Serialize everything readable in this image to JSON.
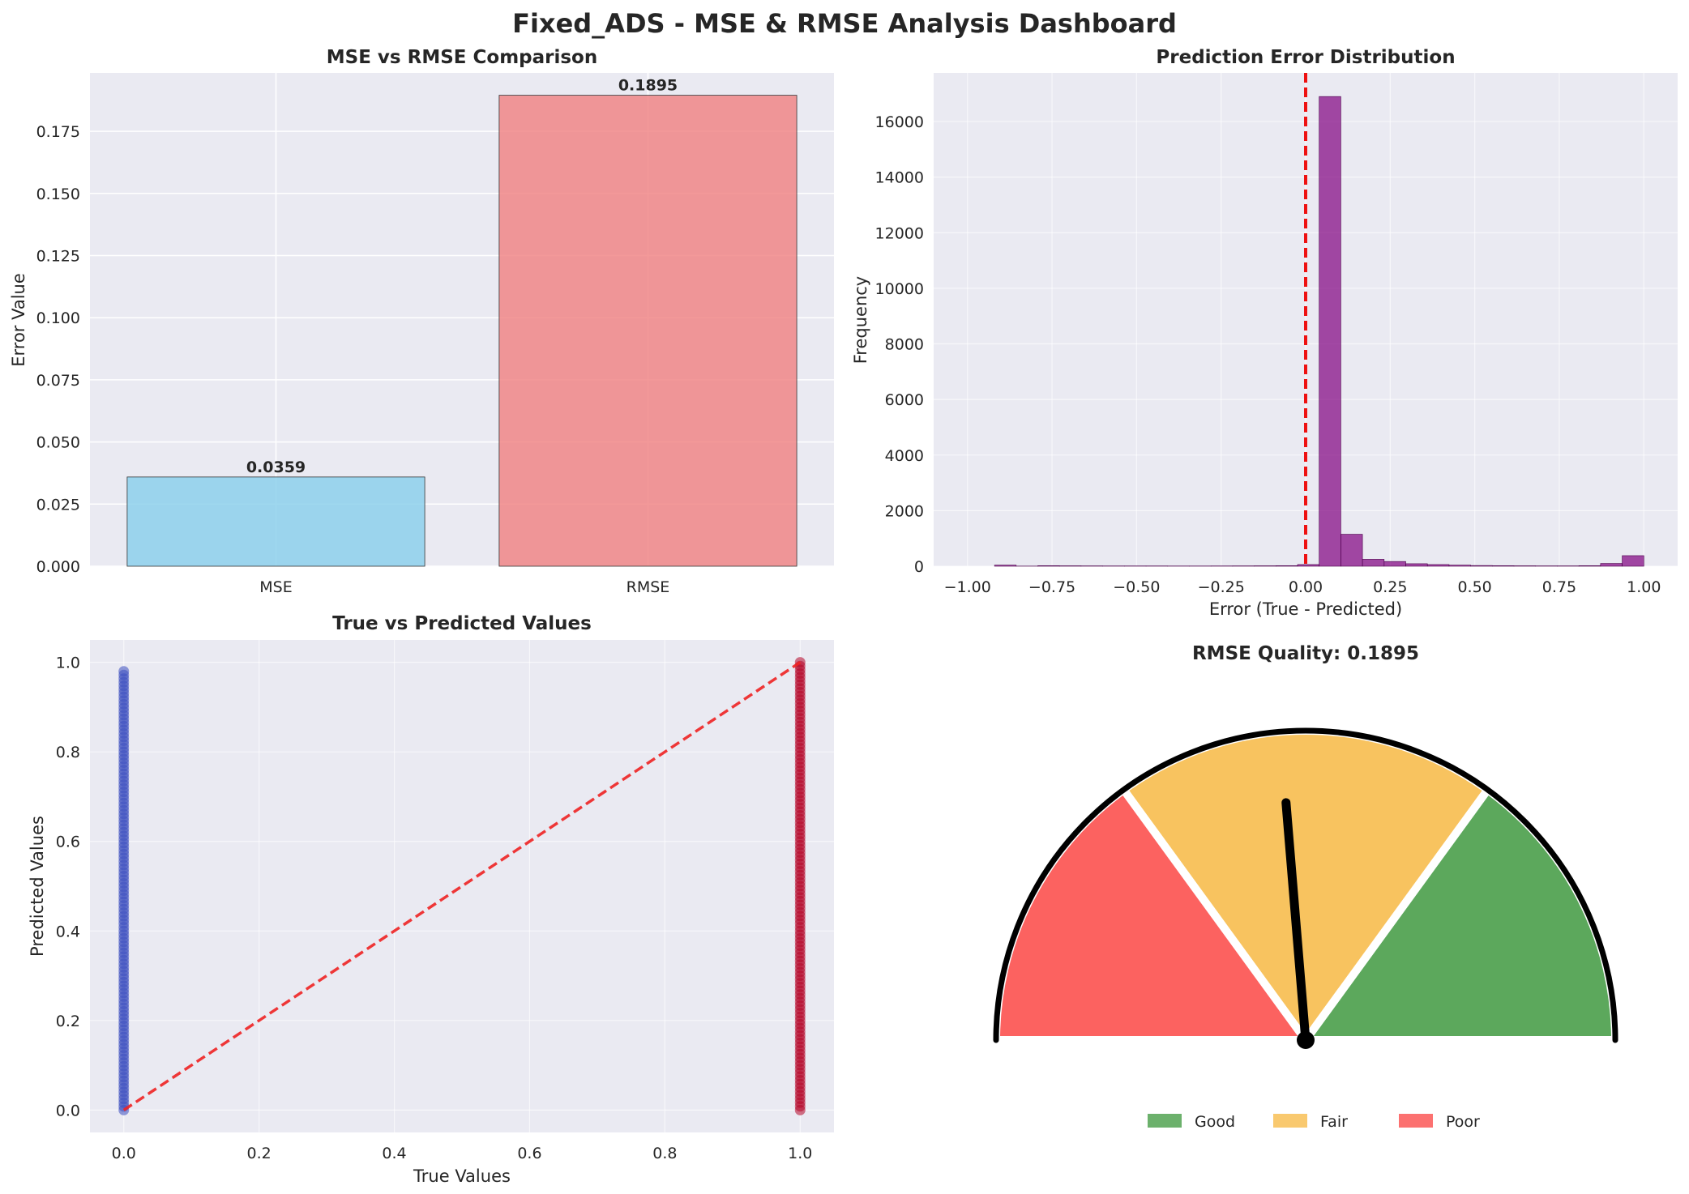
{
  "title": "Fixed_ADS - MSE & RMSE Analysis Dashboard",
  "chart_data": [
    {
      "type": "bar",
      "title": "MSE vs RMSE Comparison",
      "xlabel": "",
      "ylabel": "Error Value",
      "categories": [
        "MSE",
        "RMSE"
      ],
      "values": [
        0.0359,
        0.1895
      ],
      "value_labels": [
        "0.0359",
        "0.1895"
      ],
      "colors": [
        "#87ceeb",
        "#f08080"
      ],
      "ylim": [
        0,
        0.1985
      ],
      "yticks": [
        0,
        0.025,
        0.05,
        0.075,
        0.1,
        0.125,
        0.15,
        0.175
      ],
      "ytick_labels": [
        "0.000",
        "0.025",
        "0.050",
        "0.075",
        "0.100",
        "0.125",
        "0.150",
        "0.175"
      ],
      "grid": true
    },
    {
      "type": "bar",
      "subtype": "histogram",
      "title": "Prediction Error Distribution",
      "xlabel": "Error (True - Predicted)",
      "ylabel": "Frequency",
      "color": "#800080",
      "xlim": [
        -1.1,
        1.1
      ],
      "ylim": [
        0,
        17750
      ],
      "xticks": [
        -1.0,
        -0.75,
        -0.5,
        -0.25,
        0.0,
        0.25,
        0.5,
        0.75,
        1.0
      ],
      "xtick_labels": [
        "−1.00",
        "−0.75",
        "−0.50",
        "−0.25",
        "0.00",
        "0.25",
        "0.50",
        "0.75",
        "1.00"
      ],
      "yticks": [
        0,
        2000,
        4000,
        6000,
        8000,
        10000,
        12000,
        14000,
        16000
      ],
      "ytick_labels": [
        "0",
        "2000",
        "4000",
        "6000",
        "8000",
        "10000",
        "12000",
        "14000",
        "16000"
      ],
      "bin_start": -0.92,
      "bin_width": 0.064,
      "counts": [
        40,
        5,
        20,
        15,
        12,
        10,
        10,
        10,
        8,
        8,
        10,
        12,
        15,
        20,
        60,
        16900,
        1150,
        250,
        170,
        90,
        60,
        40,
        25,
        20,
        15,
        12,
        12,
        20,
        100,
        380
      ],
      "vline": 0.0,
      "grid": true
    },
    {
      "type": "scatter",
      "title": "True vs Predicted Values",
      "xlabel": "True Values",
      "ylabel": "Predicted Values",
      "xlim": [
        -0.05,
        1.05
      ],
      "ylim": [
        -0.05,
        1.05
      ],
      "xticks": [
        0.0,
        0.2,
        0.4,
        0.6,
        0.8,
        1.0
      ],
      "xtick_labels": [
        "0.0",
        "0.2",
        "0.4",
        "0.6",
        "0.8",
        "1.0"
      ],
      "yticks": [
        0.0,
        0.2,
        0.4,
        0.6,
        0.8,
        1.0
      ],
      "ytick_labels": [
        "0.0",
        "0.2",
        "0.4",
        "0.6",
        "0.8",
        "1.0"
      ],
      "series": [
        {
          "x_value": 0.0,
          "y_min": 0.0,
          "y_max": 0.98,
          "color": "#3b4cc0"
        },
        {
          "x_value": 1.0,
          "y_min": 0.0,
          "y_max": 1.0,
          "color": "#b40426"
        }
      ],
      "reference_line": {
        "x": [
          0,
          1
        ],
        "y": [
          0,
          1
        ],
        "color": "#ee2222"
      },
      "grid": true
    },
    {
      "type": "gauge",
      "title": "RMSE Quality: 0.1895",
      "value": 0.1895,
      "zones": [
        {
          "name": "Good",
          "color": "#5ca85c"
        },
        {
          "name": "Fair",
          "color": "#f8c35f"
        },
        {
          "name": "Poor",
          "color": "#fc6260"
        }
      ],
      "legend": [
        "Good",
        "Fair",
        "Poor"
      ],
      "legend_placement": "bottom-center"
    }
  ]
}
